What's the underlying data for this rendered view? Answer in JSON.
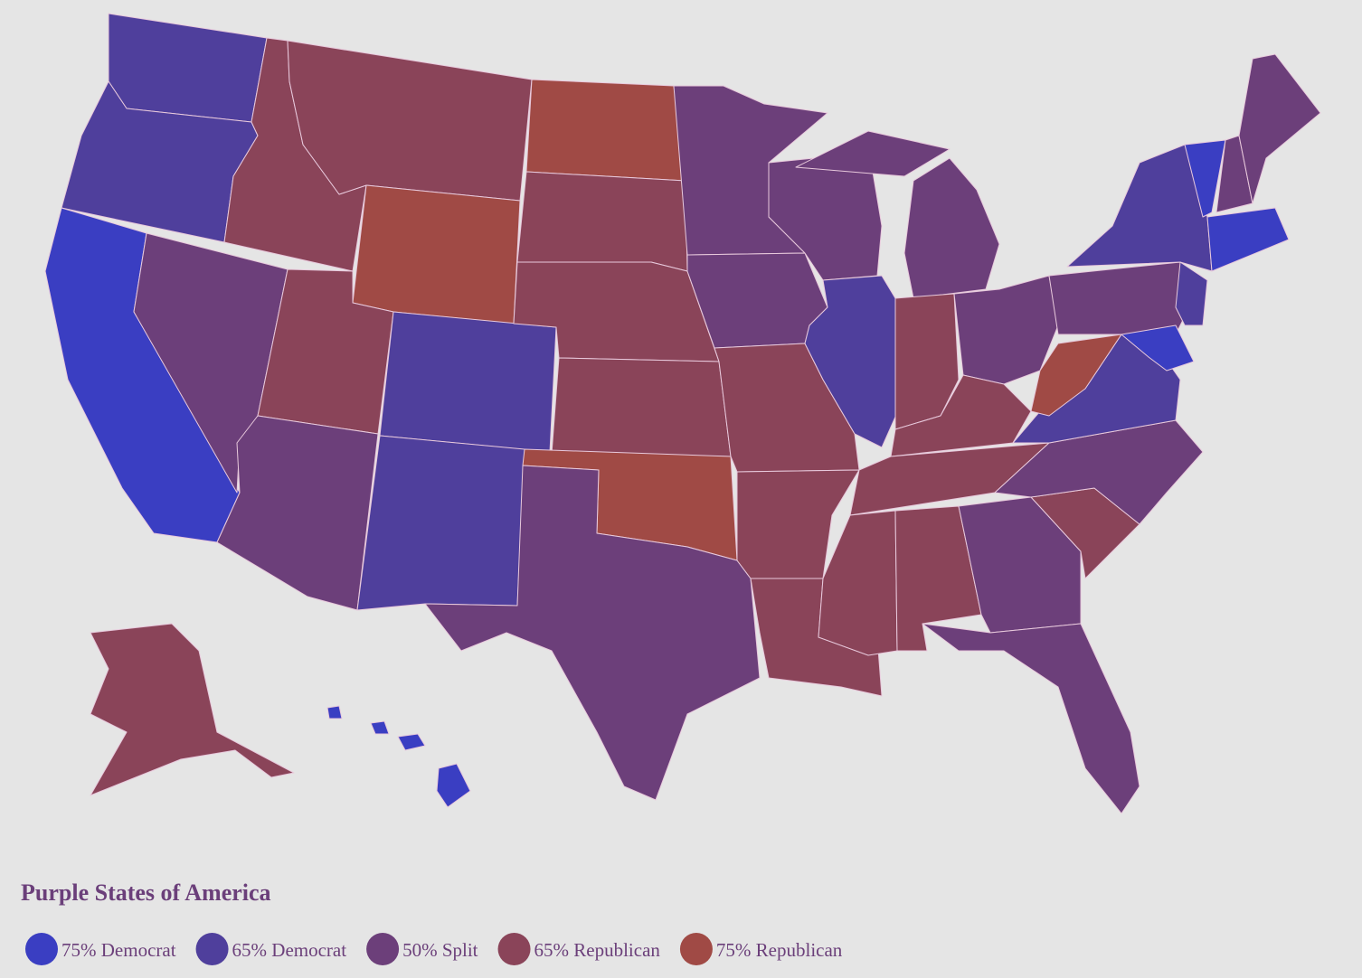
{
  "title": "Purple States of America",
  "legend": {
    "items": [
      {
        "label": "75% Democrat",
        "color": "#3a3ec2"
      },
      {
        "label": "65% Democrat",
        "color": "#4f3f9c"
      },
      {
        "label": "50% Split",
        "color": "#6c3f7a"
      },
      {
        "label": "65% Republican",
        "color": "#8a4459"
      },
      {
        "label": "75% Republican",
        "color": "#a04a45"
      }
    ]
  }
}
